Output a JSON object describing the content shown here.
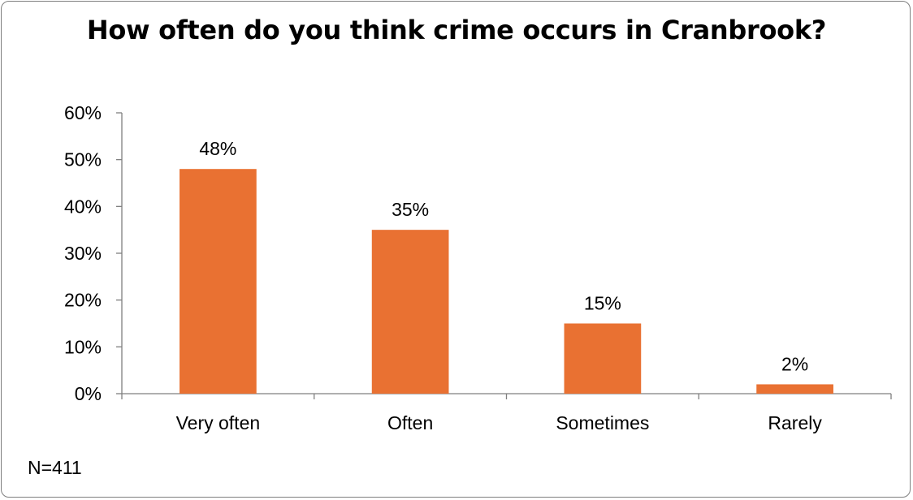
{
  "chart_data": {
    "type": "bar",
    "title": "How often do you think crime occurs in Cranbrook?",
    "categories": [
      "Very often",
      "Often",
      "Sometimes",
      "Rarely"
    ],
    "values": [
      48,
      35,
      15,
      2
    ],
    "data_labels": [
      "48%",
      "35%",
      "15%",
      "2%"
    ],
    "y_tick_labels": [
      "0%",
      "10%",
      "20%",
      "30%",
      "40%",
      "50%",
      "60%"
    ],
    "y_ticks": [
      0,
      10,
      20,
      30,
      40,
      50,
      60
    ],
    "ylim": [
      0,
      60
    ],
    "xlabel": "",
    "ylabel": "",
    "grid": false,
    "legend": "none",
    "bar_color": "#E97132",
    "axis_color": "#7F7F7F"
  },
  "footnote": "N=411"
}
